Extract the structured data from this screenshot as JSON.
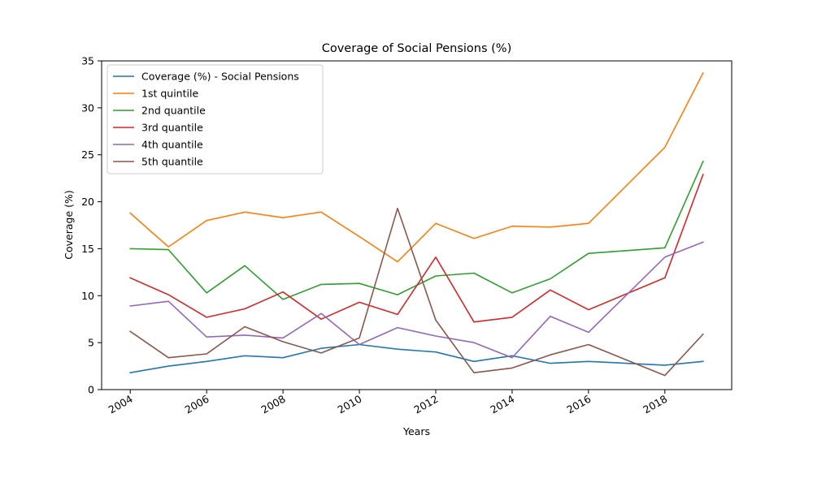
{
  "chart_data": {
    "type": "line",
    "title": "Coverage of Social Pensions (%)",
    "xlabel": "Years",
    "ylabel": "Coverage (%)",
    "xlim": [
      2003.25,
      2019.75
    ],
    "ylim": [
      0,
      35
    ],
    "x_ticks": [
      2004,
      2006,
      2008,
      2010,
      2012,
      2014,
      2016,
      2018
    ],
    "x_tick_labels": [
      "2004",
      "2006",
      "2008",
      "2010",
      "2012",
      "2014",
      "2016",
      "2018"
    ],
    "y_ticks": [
      0,
      5,
      10,
      15,
      20,
      25,
      30,
      35
    ],
    "y_tick_labels": [
      "0",
      "5",
      "10",
      "15",
      "20",
      "25",
      "30",
      "35"
    ],
    "grid": false,
    "legend_position": "top-left",
    "x": [
      2004,
      2005,
      2006,
      2007,
      2008,
      2009,
      2010,
      2011,
      2012,
      2013,
      2014,
      2015,
      2016,
      2018,
      2019
    ],
    "series": [
      {
        "name": "Coverage (%) - Social Pensions",
        "color": "#1f77b4",
        "values": [
          1.8,
          2.5,
          3.0,
          3.6,
          3.4,
          4.4,
          4.8,
          4.3,
          4.0,
          3.0,
          3.6,
          2.8,
          3.0,
          2.6,
          3.0
        ]
      },
      {
        "name": "1st quintile",
        "color": "#ff7f0e",
        "values": [
          18.8,
          15.2,
          18.0,
          18.9,
          18.3,
          18.9,
          16.3,
          13.6,
          17.7,
          16.1,
          17.4,
          17.3,
          17.7,
          25.8,
          33.7
        ]
      },
      {
        "name": "2nd quantile",
        "color": "#2ca02c",
        "values": [
          15.0,
          14.9,
          10.3,
          13.2,
          9.6,
          11.2,
          11.3,
          10.1,
          12.1,
          12.4,
          10.3,
          11.8,
          14.5,
          15.1,
          24.3
        ]
      },
      {
        "name": "3rd quantile",
        "color": "#d62728",
        "values": [
          11.9,
          10.1,
          7.7,
          8.6,
          10.4,
          7.5,
          9.3,
          8.0,
          14.1,
          7.2,
          7.7,
          10.6,
          8.5,
          11.9,
          22.9
        ]
      },
      {
        "name": "4th quantile",
        "color": "#9467bd",
        "values": [
          8.9,
          9.4,
          5.6,
          5.8,
          5.5,
          8.1,
          4.8,
          6.6,
          5.7,
          5.0,
          3.4,
          7.8,
          6.1,
          14.1,
          15.7
        ]
      },
      {
        "name": "5th quantile",
        "color": "#8c564b",
        "values": [
          6.2,
          3.4,
          3.8,
          6.7,
          5.1,
          3.9,
          5.5,
          19.3,
          7.4,
          1.8,
          2.3,
          3.7,
          4.8,
          1.5,
          5.9
        ]
      }
    ]
  }
}
